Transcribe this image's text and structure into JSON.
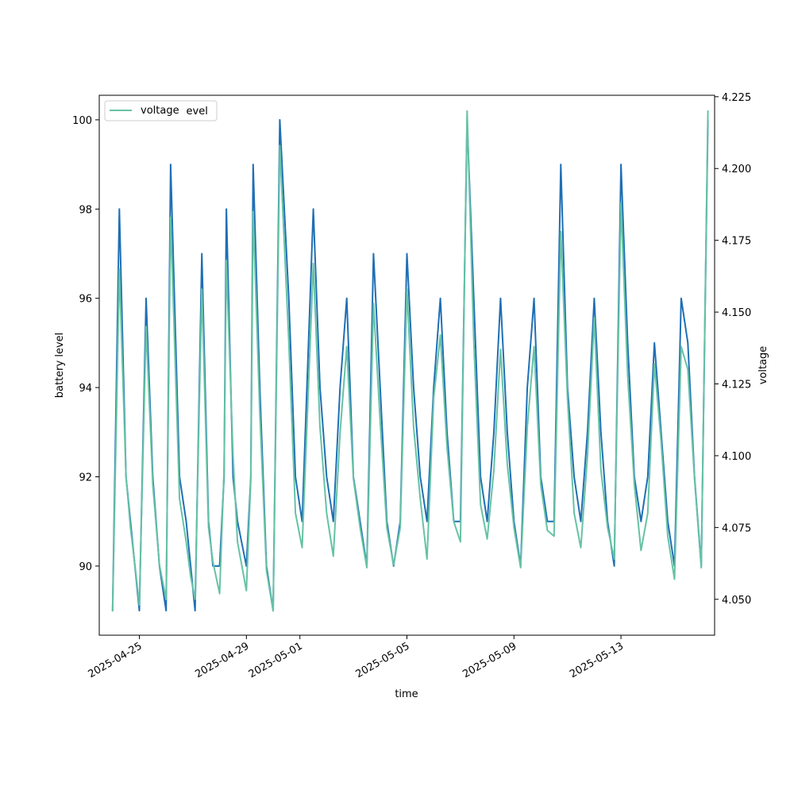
{
  "chart_data": {
    "type": "line",
    "xlabel": "time",
    "ylabel_left": "battery level",
    "ylabel_right": "voltage",
    "xlim": [
      "2025-04-23T12:00",
      "2025-05-16T12:00"
    ],
    "ylim_left": [
      88.45,
      100.55
    ],
    "ylim_right": [
      4.0375,
      4.2255
    ],
    "x_ticks": [
      "2025-04-25",
      "2025-04-29",
      "2025-05-01",
      "2025-05-05",
      "2025-05-09",
      "2025-05-13"
    ],
    "y_ticks_left": [
      "90",
      "92",
      "94",
      "96",
      "98",
      "100"
    ],
    "y_ticks_right": [
      "4.050",
      "4.075",
      "4.100",
      "4.125",
      "4.150",
      "4.175",
      "4.200",
      "4.225"
    ],
    "legend_location": "upper left",
    "legend_overlapping_labels": [
      "battery_level",
      "voltage"
    ],
    "grid": false,
    "colors": {
      "battery_level": "#1f6fb4",
      "voltage": "#66c2a5"
    },
    "series": [
      {
        "name": "battery_level",
        "axis": "left",
        "points": [
          [
            "2025-04-24T00:00",
            89
          ],
          [
            "2025-04-24T06:00",
            98
          ],
          [
            "2025-04-24T12:00",
            92
          ],
          [
            "2025-04-24T16:00",
            91
          ],
          [
            "2025-04-24T20:00",
            90
          ],
          [
            "2025-04-25T00:00",
            89
          ],
          [
            "2025-04-25T06:00",
            96
          ],
          [
            "2025-04-25T12:00",
            92
          ],
          [
            "2025-04-25T18:00",
            90
          ],
          [
            "2025-04-26T00:00",
            89
          ],
          [
            "2025-04-26T04:00",
            99
          ],
          [
            "2025-04-26T12:00",
            92
          ],
          [
            "2025-04-26T18:00",
            91
          ],
          [
            "2025-04-26T22:00",
            90
          ],
          [
            "2025-04-27T02:00",
            89
          ],
          [
            "2025-04-27T08:00",
            97
          ],
          [
            "2025-04-27T14:00",
            91
          ],
          [
            "2025-04-27T18:00",
            90
          ],
          [
            "2025-04-28T00:00",
            90
          ],
          [
            "2025-04-28T04:00",
            92
          ],
          [
            "2025-04-28T06:00",
            98
          ],
          [
            "2025-04-28T12:00",
            92
          ],
          [
            "2025-04-28T16:00",
            91
          ],
          [
            "2025-04-29T00:00",
            90
          ],
          [
            "2025-04-29T04:00",
            92
          ],
          [
            "2025-04-29T06:00",
            99
          ],
          [
            "2025-04-29T12:00",
            94
          ],
          [
            "2025-04-29T18:00",
            90
          ],
          [
            "2025-04-30T00:00",
            89
          ],
          [
            "2025-04-30T06:00",
            100
          ],
          [
            "2025-04-30T14:00",
            96
          ],
          [
            "2025-04-30T20:00",
            92
          ],
          [
            "2025-05-01T02:00",
            91
          ],
          [
            "2025-05-01T12:00",
            98
          ],
          [
            "2025-05-01T18:00",
            94
          ],
          [
            "2025-05-02T00:00",
            92
          ],
          [
            "2025-05-02T06:00",
            91
          ],
          [
            "2025-05-02T12:00",
            94
          ],
          [
            "2025-05-02T18:00",
            96
          ],
          [
            "2025-05-03T00:00",
            92
          ],
          [
            "2025-05-03T06:00",
            91
          ],
          [
            "2025-05-03T12:00",
            90
          ],
          [
            "2025-05-03T18:00",
            97
          ],
          [
            "2025-05-04T00:00",
            94
          ],
          [
            "2025-05-04T06:00",
            91
          ],
          [
            "2025-05-04T12:00",
            90
          ],
          [
            "2025-05-04T18:00",
            91
          ],
          [
            "2025-05-05T00:00",
            97
          ],
          [
            "2025-05-05T06:00",
            94
          ],
          [
            "2025-05-05T12:00",
            92
          ],
          [
            "2025-05-05T18:00",
            91
          ],
          [
            "2025-05-06T00:00",
            94
          ],
          [
            "2025-05-06T06:00",
            96
          ],
          [
            "2025-05-06T12:00",
            93
          ],
          [
            "2025-05-06T18:00",
            91
          ],
          [
            "2025-05-07T00:00",
            91
          ],
          [
            "2025-05-07T06:00",
            100
          ],
          [
            "2025-05-07T12:00",
            96
          ],
          [
            "2025-05-07T18:00",
            92
          ],
          [
            "2025-05-08T00:00",
            91
          ],
          [
            "2025-05-08T06:00",
            93
          ],
          [
            "2025-05-08T12:00",
            96
          ],
          [
            "2025-05-08T18:00",
            93
          ],
          [
            "2025-05-09T00:00",
            91
          ],
          [
            "2025-05-09T06:00",
            90
          ],
          [
            "2025-05-09T12:00",
            94
          ],
          [
            "2025-05-09T18:00",
            96
          ],
          [
            "2025-05-10T00:00",
            92
          ],
          [
            "2025-05-10T06:00",
            91
          ],
          [
            "2025-05-10T12:00",
            91
          ],
          [
            "2025-05-10T18:00",
            99
          ],
          [
            "2025-05-11T00:00",
            94
          ],
          [
            "2025-05-11T06:00",
            92
          ],
          [
            "2025-05-11T12:00",
            91
          ],
          [
            "2025-05-11T18:00",
            93
          ],
          [
            "2025-05-12T00:00",
            96
          ],
          [
            "2025-05-12T06:00",
            93
          ],
          [
            "2025-05-12T12:00",
            91
          ],
          [
            "2025-05-12T18:00",
            90
          ],
          [
            "2025-05-13T00:00",
            99
          ],
          [
            "2025-05-13T06:00",
            95
          ],
          [
            "2025-05-13T12:00",
            92
          ],
          [
            "2025-05-13T18:00",
            91
          ],
          [
            "2025-05-14T00:00",
            92
          ],
          [
            "2025-05-14T06:00",
            95
          ],
          [
            "2025-05-14T12:00",
            93
          ],
          [
            "2025-05-14T18:00",
            91
          ],
          [
            "2025-05-15T00:00",
            90
          ],
          [
            "2025-05-15T06:00",
            96
          ],
          [
            "2025-05-15T12:00",
            95
          ],
          [
            "2025-05-15T18:00",
            92
          ],
          [
            "2025-05-16T00:00",
            90
          ],
          [
            "2025-05-16T06:00",
            100
          ]
        ]
      },
      {
        "name": "voltage",
        "axis": "right",
        "points": [
          [
            "2025-04-24T00:00",
            4.046
          ],
          [
            "2025-04-24T06:00",
            4.165
          ],
          [
            "2025-04-24T12:00",
            4.093
          ],
          [
            "2025-04-24T16:00",
            4.075
          ],
          [
            "2025-04-24T20:00",
            4.062
          ],
          [
            "2025-04-25T00:00",
            4.048
          ],
          [
            "2025-04-25T06:00",
            4.145
          ],
          [
            "2025-04-25T12:00",
            4.09
          ],
          [
            "2025-04-25T18:00",
            4.062
          ],
          [
            "2025-04-26T00:00",
            4.05
          ],
          [
            "2025-04-26T04:00",
            4.183
          ],
          [
            "2025-04-26T12:00",
            4.085
          ],
          [
            "2025-04-26T18:00",
            4.07
          ],
          [
            "2025-04-26T22:00",
            4.058
          ],
          [
            "2025-04-27T02:00",
            4.05
          ],
          [
            "2025-04-27T08:00",
            4.158
          ],
          [
            "2025-04-27T14:00",
            4.075
          ],
          [
            "2025-04-27T18:00",
            4.063
          ],
          [
            "2025-04-28T00:00",
            4.052
          ],
          [
            "2025-04-28T04:00",
            4.095
          ],
          [
            "2025-04-28T06:00",
            4.168
          ],
          [
            "2025-04-28T12:00",
            4.1
          ],
          [
            "2025-04-28T16:00",
            4.07
          ],
          [
            "2025-04-29T00:00",
            4.053
          ],
          [
            "2025-04-29T04:00",
            4.092
          ],
          [
            "2025-04-29T06:00",
            4.185
          ],
          [
            "2025-04-29T12:00",
            4.115
          ],
          [
            "2025-04-29T18:00",
            4.06
          ],
          [
            "2025-04-30T00:00",
            4.046
          ],
          [
            "2025-04-30T06:00",
            4.208
          ],
          [
            "2025-04-30T14:00",
            4.14
          ],
          [
            "2025-04-30T20:00",
            4.08
          ],
          [
            "2025-05-01T02:00",
            4.068
          ],
          [
            "2025-05-01T12:00",
            4.167
          ],
          [
            "2025-05-01T18:00",
            4.11
          ],
          [
            "2025-05-02T00:00",
            4.08
          ],
          [
            "2025-05-02T06:00",
            4.065
          ],
          [
            "2025-05-02T12:00",
            4.108
          ],
          [
            "2025-05-02T18:00",
            4.138
          ],
          [
            "2025-05-03T00:00",
            4.092
          ],
          [
            "2025-05-03T06:00",
            4.075
          ],
          [
            "2025-05-03T12:00",
            4.061
          ],
          [
            "2025-05-03T18:00",
            4.153
          ],
          [
            "2025-05-04T00:00",
            4.112
          ],
          [
            "2025-05-04T06:00",
            4.075
          ],
          [
            "2025-05-04T12:00",
            4.062
          ],
          [
            "2025-05-04T18:00",
            4.075
          ],
          [
            "2025-05-05T00:00",
            4.158
          ],
          [
            "2025-05-05T06:00",
            4.11
          ],
          [
            "2025-05-05T12:00",
            4.085
          ],
          [
            "2025-05-05T18:00",
            4.064
          ],
          [
            "2025-05-06T00:00",
            4.12
          ],
          [
            "2025-05-06T06:00",
            4.142
          ],
          [
            "2025-05-06T12:00",
            4.103
          ],
          [
            "2025-05-06T18:00",
            4.077
          ],
          [
            "2025-05-07T00:00",
            4.07
          ],
          [
            "2025-05-07T06:00",
            4.22
          ],
          [
            "2025-05-07T12:00",
            4.14
          ],
          [
            "2025-05-07T18:00",
            4.083
          ],
          [
            "2025-05-08T00:00",
            4.071
          ],
          [
            "2025-05-08T06:00",
            4.095
          ],
          [
            "2025-05-08T12:00",
            4.137
          ],
          [
            "2025-05-08T18:00",
            4.097
          ],
          [
            "2025-05-09T00:00",
            4.075
          ],
          [
            "2025-05-09T06:00",
            4.061
          ],
          [
            "2025-05-09T12:00",
            4.11
          ],
          [
            "2025-05-09T18:00",
            4.138
          ],
          [
            "2025-05-10T00:00",
            4.09
          ],
          [
            "2025-05-10T06:00",
            4.074
          ],
          [
            "2025-05-10T12:00",
            4.072
          ],
          [
            "2025-05-10T18:00",
            4.178
          ],
          [
            "2025-05-11T00:00",
            4.12
          ],
          [
            "2025-05-11T06:00",
            4.08
          ],
          [
            "2025-05-11T12:00",
            4.068
          ],
          [
            "2025-05-11T18:00",
            4.1
          ],
          [
            "2025-05-12T00:00",
            4.148
          ],
          [
            "2025-05-12T06:00",
            4.095
          ],
          [
            "2025-05-12T12:00",
            4.075
          ],
          [
            "2025-05-12T18:00",
            4.064
          ],
          [
            "2025-05-13T00:00",
            4.188
          ],
          [
            "2025-05-13T06:00",
            4.128
          ],
          [
            "2025-05-13T12:00",
            4.09
          ],
          [
            "2025-05-13T18:00",
            4.067
          ],
          [
            "2025-05-14T00:00",
            4.08
          ],
          [
            "2025-05-14T06:00",
            4.132
          ],
          [
            "2025-05-14T12:00",
            4.105
          ],
          [
            "2025-05-14T18:00",
            4.072
          ],
          [
            "2025-05-15T00:00",
            4.057
          ],
          [
            "2025-05-15T06:00",
            4.138
          ],
          [
            "2025-05-15T12:00",
            4.13
          ],
          [
            "2025-05-15T18:00",
            4.092
          ],
          [
            "2025-05-16T00:00",
            4.061
          ],
          [
            "2025-05-16T06:00",
            4.22
          ]
        ]
      }
    ]
  }
}
